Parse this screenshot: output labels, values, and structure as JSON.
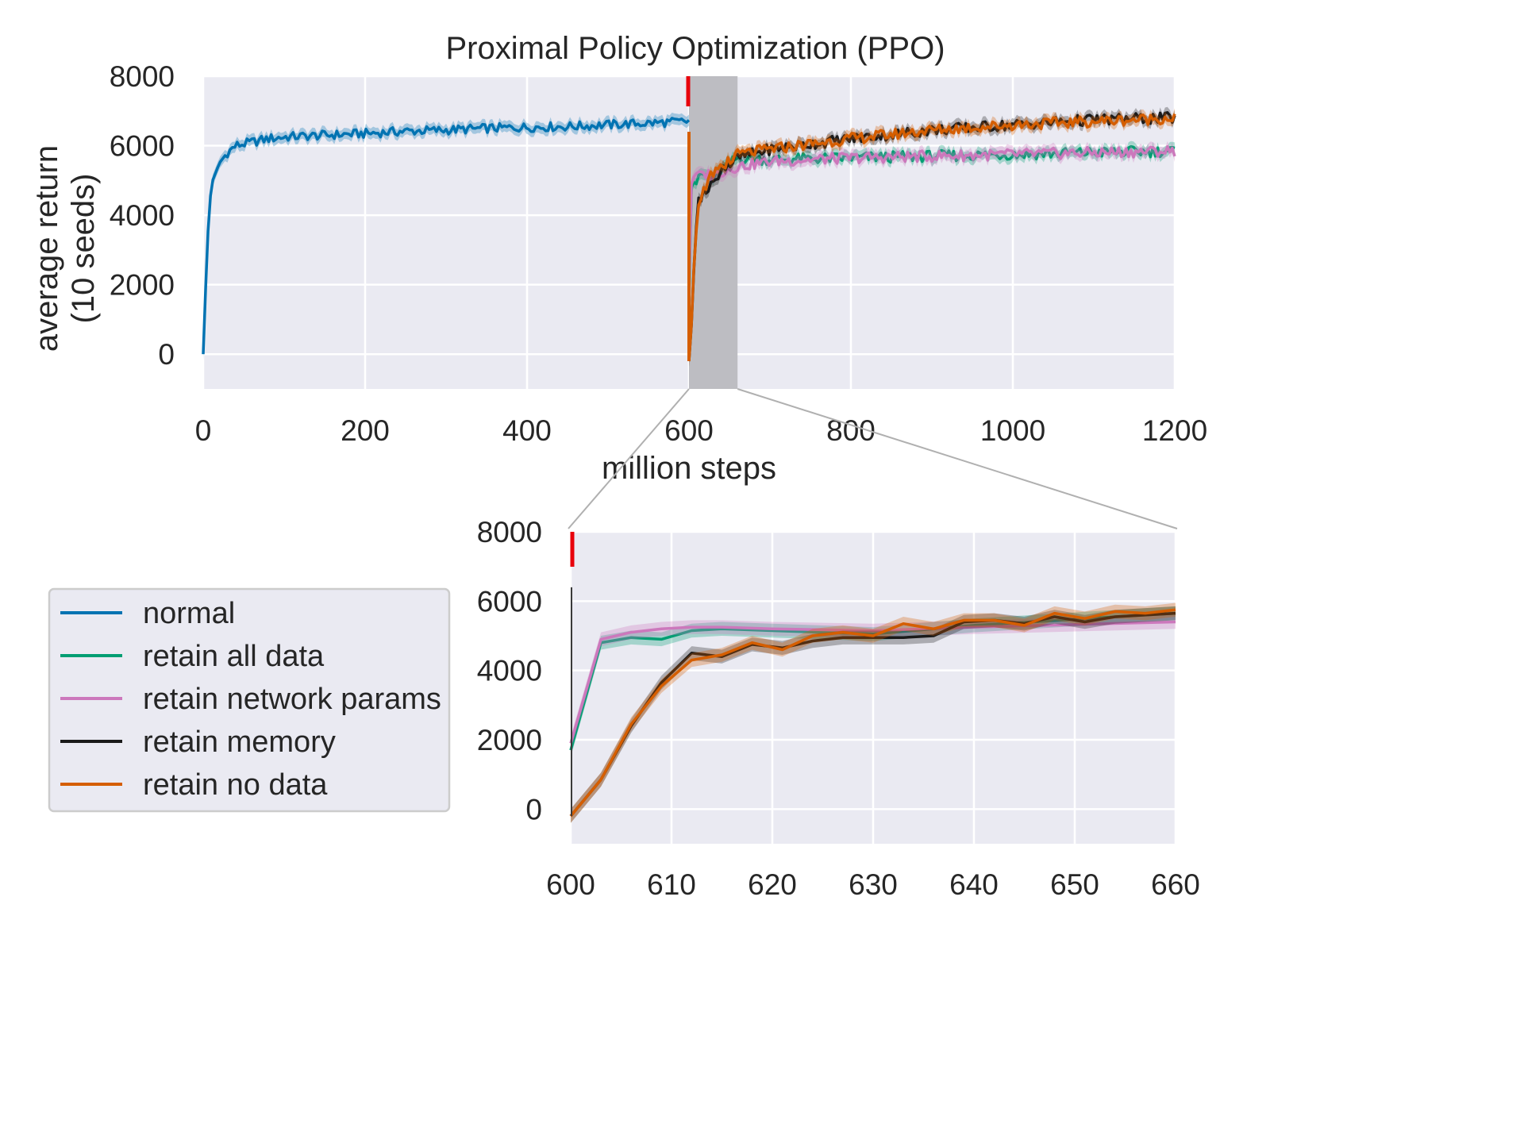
{
  "chart_data": [
    {
      "type": "line",
      "title": "Proximal Policy Optimization (PPO)",
      "xlabel": "million steps",
      "ylabel": "average return\n(10 seeds)",
      "xlim": [
        0,
        1200
      ],
      "ylim": [
        -1000,
        8000
      ],
      "xticks": [
        "0",
        "200",
        "400",
        "600",
        "800",
        "1000",
        "1200"
      ],
      "yticks": [
        "0",
        "2000",
        "4000",
        "6000",
        "8000"
      ],
      "grid": true,
      "shaded_region": [
        600,
        660
      ],
      "marker_x": 600,
      "series": [
        {
          "name": "normal",
          "color": "#0173b2",
          "x": [
            0,
            5,
            10,
            20,
            30,
            40,
            60,
            80,
            100,
            150,
            200,
            250,
            300,
            350,
            400,
            450,
            500,
            550,
            600
          ],
          "y": [
            0,
            3200,
            4900,
            5500,
            5800,
            6000,
            6100,
            6200,
            6250,
            6300,
            6350,
            6420,
            6450,
            6500,
            6530,
            6550,
            6600,
            6650,
            6700
          ]
        },
        {
          "name": "retain all data",
          "color": "#029e73",
          "x": [
            600,
            603,
            606,
            609,
            612,
            615,
            620,
            630,
            640,
            660,
            700,
            800,
            900,
            1000,
            1100,
            1200
          ],
          "y": [
            1700,
            4800,
            4950,
            4900,
            5150,
            5200,
            5150,
            5050,
            5300,
            5650,
            5600,
            5650,
            5700,
            5750,
            5800,
            5850
          ]
        },
        {
          "name": "retain network params",
          "color": "#cc78bc",
          "x": [
            600,
            603,
            606,
            609,
            612,
            615,
            620,
            630,
            640,
            660,
            700,
            800,
            900,
            1000,
            1100,
            1200
          ],
          "y": [
            1900,
            4900,
            5100,
            5200,
            5250,
            5250,
            5200,
            5150,
            5250,
            5400,
            5550,
            5650,
            5700,
            5750,
            5800,
            5850
          ]
        },
        {
          "name": "retain memory",
          "color": "#1a1a1a",
          "x": [
            600,
            603,
            606,
            609,
            612,
            615,
            618,
            621,
            624,
            627,
            630,
            633,
            636,
            639,
            642,
            645,
            648,
            651,
            654,
            657,
            660,
            700,
            800,
            900,
            1000,
            1100,
            1200
          ],
          "y": [
            -200,
            850,
            2400,
            3650,
            4500,
            4400,
            4750,
            4650,
            4850,
            4950,
            4950,
            4950,
            5000,
            5400,
            5450,
            5350,
            5550,
            5400,
            5550,
            5600,
            5650,
            5900,
            6200,
            6450,
            6600,
            6750,
            6800
          ]
        },
        {
          "name": "retain no data",
          "color": "#d55e00",
          "x": [
            600,
            603,
            606,
            609,
            612,
            615,
            618,
            621,
            624,
            627,
            630,
            633,
            636,
            639,
            642,
            645,
            648,
            651,
            654,
            657,
            660,
            700,
            800,
            900,
            1000,
            1100,
            1200
          ],
          "y": [
            -200,
            850,
            2450,
            3550,
            4300,
            4450,
            4800,
            4600,
            5000,
            5100,
            5000,
            5350,
            5200,
            5450,
            5450,
            5300,
            5650,
            5500,
            5700,
            5650,
            5750,
            5900,
            6200,
            6450,
            6600,
            6700,
            6800
          ]
        }
      ]
    },
    {
      "type": "line",
      "title": "",
      "xlabel": "",
      "ylabel": "",
      "xlim": [
        600,
        660
      ],
      "ylim": [
        -1000,
        8000
      ],
      "xticks": [
        "600",
        "610",
        "620",
        "630",
        "640",
        "650",
        "660"
      ],
      "yticks": [
        "0",
        "2000",
        "4000",
        "6000",
        "8000"
      ],
      "grid": true,
      "series_ref": "same as first chart, zoomed to 600-660"
    }
  ],
  "legend": {
    "placement": "lower-left",
    "items": [
      {
        "label": "normal",
        "color": "#0173b2"
      },
      {
        "label": "retain all data",
        "color": "#029e73"
      },
      {
        "label": "retain network params",
        "color": "#cc78bc"
      },
      {
        "label": "retain memory",
        "color": "#1a1a1a"
      },
      {
        "label": "retain no data",
        "color": "#d55e00"
      }
    ]
  },
  "colors": {
    "axes_bg": "#eaeaf2",
    "grid": "#ffffff",
    "shade": "#bdbdc2",
    "marker": "#e8000b",
    "zoom_lines": "#b0b0b0"
  }
}
